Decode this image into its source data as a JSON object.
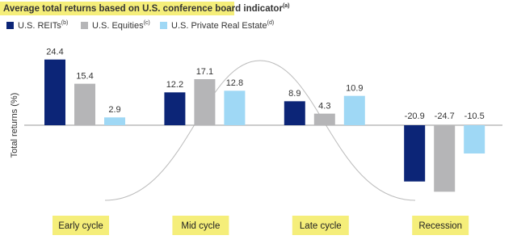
{
  "chart_data": {
    "type": "bar",
    "title": "Average total returns based on U.S. conference board indicator",
    "title_note": "(a)",
    "y_label": "Total returns (%)",
    "categories": [
      "Early cycle",
      "Mid cycle",
      "Late cycle",
      "Recession"
    ],
    "series": [
      {
        "name": "U.S. REITs",
        "note": "(b)",
        "color": "#0c2577",
        "values": [
          24.4,
          12.2,
          8.9,
          -20.9
        ]
      },
      {
        "name": "U.S. Equities",
        "note": "(c)",
        "color": "#b5b5b7",
        "values": [
          15.4,
          17.1,
          4.3,
          -24.7
        ]
      },
      {
        "name": "U.S. Private Real Estate",
        "note": "(d)",
        "color": "#9fd8f5",
        "values": [
          2.9,
          12.8,
          10.9,
          -10.5
        ]
      }
    ],
    "ylim": [
      -27,
      31.5
    ]
  }
}
